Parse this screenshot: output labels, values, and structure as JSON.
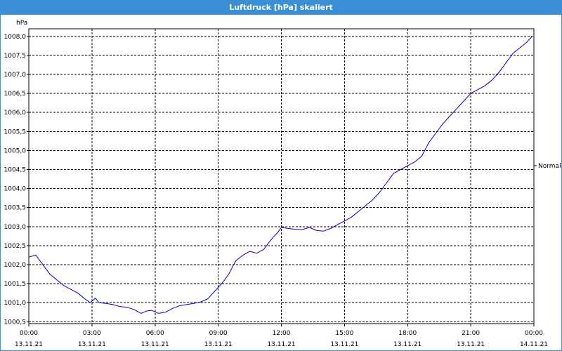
{
  "window": {
    "title": "Luftdruck [hPa] skaliert"
  },
  "colors": {
    "title_bar": "#3a8fd4",
    "series": "#0000cc",
    "grid": "#000000",
    "background": "#ffffff"
  },
  "chart_data": {
    "type": "line",
    "title": "Luftdruck [hPa] skaliert",
    "ylabel": "hPa",
    "xlabel": "",
    "ylim": [
      1000.45,
      1008.2
    ],
    "xlim_hours": [
      0,
      24
    ],
    "grid": true,
    "y_ticks": [
      "1000,5",
      "1001,0",
      "1001,5",
      "1002,0",
      "1002,5",
      "1003,0",
      "1003,5",
      "1004,0",
      "1004,5",
      "1005,0",
      "1005,5",
      "1006,0",
      "1006,5",
      "1007,0",
      "1007,5",
      "1008,0"
    ],
    "y_tick_values": [
      1000.5,
      1001.0,
      1001.5,
      1002.0,
      1002.5,
      1003.0,
      1003.5,
      1004.0,
      1004.5,
      1005.0,
      1005.5,
      1006.0,
      1006.5,
      1007.0,
      1007.5,
      1008.0
    ],
    "x_ticks": [
      {
        "time": "00:00",
        "date": "13.11.21"
      },
      {
        "time": "03:00",
        "date": "13.11.21"
      },
      {
        "time": "06:00",
        "date": "13.11.21"
      },
      {
        "time": "09:00",
        "date": "13.11.21"
      },
      {
        "time": "12:00",
        "date": "13.11.21"
      },
      {
        "time": "15:00",
        "date": "13.11.21"
      },
      {
        "time": "18:00",
        "date": "13.11.21"
      },
      {
        "time": "21:00",
        "date": "13.11.21"
      },
      {
        "time": "00:00",
        "date": "14.11.21"
      }
    ],
    "reference_line": {
      "label": "Normal",
      "value": 1004.6
    },
    "series": [
      {
        "x": [
          "13.11.21 00:00",
          "13.11.21 00:20",
          "13.11.21 00:40",
          "13.11.21 01:00",
          "13.11.21 01:20",
          "13.11.21 01:40",
          "13.11.21 02:00",
          "13.11.21 02:20",
          "13.11.21 02:40",
          "13.11.21 02:55",
          "13.11.21 03:10",
          "13.11.21 03:20",
          "13.11.21 03:40",
          "13.11.21 04:00",
          "13.11.21 04:20",
          "13.11.21 04:40",
          "13.11.21 05:00",
          "13.11.21 05:20",
          "13.11.21 05:35",
          "13.11.21 05:50",
          "13.11.21 06:10",
          "13.11.21 06:30",
          "13.11.21 06:50",
          "13.11.21 07:10",
          "13.11.21 07:30",
          "13.11.21 07:50",
          "13.11.21 08:10",
          "13.11.21 08:30",
          "13.11.21 08:50",
          "13.11.21 09:10",
          "13.11.21 09:30",
          "13.11.21 09:50",
          "13.11.21 10:10",
          "13.11.21 10:30",
          "13.11.21 10:50",
          "13.11.21 11:10",
          "13.11.21 11:30",
          "13.11.21 11:50",
          "13.11.21 12:00",
          "13.11.21 12:20",
          "13.11.21 12:40",
          "13.11.21 13:00",
          "13.11.21 13:20",
          "13.11.21 13:40",
          "13.11.21 14:00",
          "13.11.21 14:20",
          "13.11.21 14:40",
          "13.11.21 15:00",
          "13.11.21 15:20",
          "13.11.21 15:40",
          "13.11.21 16:00",
          "13.11.21 16:20",
          "13.11.21 16:40",
          "13.11.21 17:00",
          "13.11.21 17:20",
          "13.11.21 17:40",
          "13.11.21 18:00",
          "13.11.21 18:20",
          "13.11.21 18:40",
          "13.11.21 19:00",
          "13.11.21 19:20",
          "13.11.21 19:40",
          "13.11.21 20:00",
          "13.11.21 20:20",
          "13.11.21 20:40",
          "13.11.21 21:00",
          "13.11.21 21:20",
          "13.11.21 21:40",
          "13.11.21 22:00",
          "13.11.21 22:20",
          "13.11.21 22:40",
          "13.11.21 23:00",
          "13.11.21 23:20",
          "13.11.21 23:40",
          "13.11.21 23:55"
        ],
        "values": [
          1002.2,
          1002.25,
          1002.0,
          1001.75,
          1001.6,
          1001.45,
          1001.35,
          1001.25,
          1001.1,
          1001.0,
          1001.12,
          1001.0,
          1000.98,
          1000.95,
          1000.9,
          1000.88,
          1000.82,
          1000.72,
          1000.78,
          1000.8,
          1000.72,
          1000.75,
          1000.85,
          1000.92,
          1000.95,
          1000.98,
          1001.02,
          1001.1,
          1001.3,
          1001.5,
          1001.75,
          1002.1,
          1002.25,
          1002.35,
          1002.3,
          1002.4,
          1002.65,
          1002.85,
          1002.98,
          1002.95,
          1002.93,
          1002.92,
          1002.98,
          1002.9,
          1002.88,
          1002.95,
          1003.05,
          1003.15,
          1003.25,
          1003.4,
          1003.55,
          1003.7,
          1003.9,
          1004.15,
          1004.4,
          1004.5,
          1004.6,
          1004.7,
          1004.85,
          1005.2,
          1005.45,
          1005.7,
          1005.9,
          1006.1,
          1006.3,
          1006.5,
          1006.6,
          1006.7,
          1006.85,
          1007.05,
          1007.3,
          1007.55,
          1007.7,
          1007.85,
          1008.0
        ]
      }
    ]
  }
}
